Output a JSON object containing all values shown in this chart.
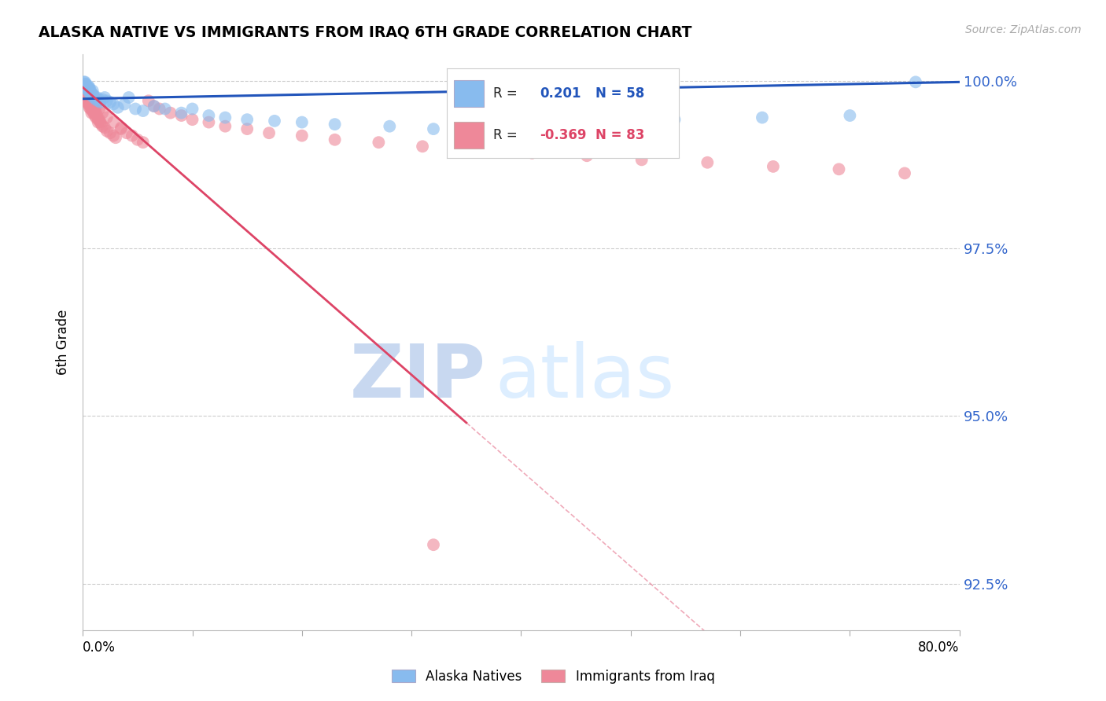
{
  "title": "ALASKA NATIVE VS IMMIGRANTS FROM IRAQ 6TH GRADE CORRELATION CHART",
  "source": "Source: ZipAtlas.com",
  "ylabel": "6th Grade",
  "ytick_values": [
    0.925,
    0.95,
    0.975,
    1.0
  ],
  "ytick_labels": [
    "92.5%",
    "95.0%",
    "97.5%",
    "100.0%"
  ],
  "xmin": 0.0,
  "xmax": 0.8,
  "ymin": 0.918,
  "ymax": 1.004,
  "blue_R": 0.201,
  "blue_N": 58,
  "pink_R": -0.369,
  "pink_N": 83,
  "legend_label_blue": "Alaska Natives",
  "legend_label_pink": "Immigrants from Iraq",
  "watermark_zip": "ZIP",
  "watermark_atlas": "atlas",
  "blue_line_color": "#2255bb",
  "pink_line_color": "#dd4466",
  "blue_scatter_color": "#88bbee",
  "pink_scatter_color": "#ee8899",
  "grid_color": "#cccccc",
  "background_color": "#ffffff",
  "blue_scatter_x": [
    0.001,
    0.002,
    0.002,
    0.003,
    0.003,
    0.003,
    0.004,
    0.004,
    0.005,
    0.005,
    0.005,
    0.006,
    0.006,
    0.006,
    0.006,
    0.007,
    0.007,
    0.008,
    0.008,
    0.009,
    0.009,
    0.01,
    0.01,
    0.011,
    0.012,
    0.013,
    0.014,
    0.015,
    0.016,
    0.018,
    0.02,
    0.022,
    0.025,
    0.028,
    0.032,
    0.038,
    0.042,
    0.048,
    0.055,
    0.065,
    0.075,
    0.09,
    0.1,
    0.115,
    0.13,
    0.15,
    0.175,
    0.2,
    0.23,
    0.28,
    0.32,
    0.37,
    0.42,
    0.48,
    0.54,
    0.62,
    0.7,
    0.76
  ],
  "blue_scatter_y": [
    0.9998,
    0.9998,
    0.9995,
    0.9992,
    0.999,
    0.9995,
    0.9988,
    0.999,
    0.9985,
    0.9992,
    0.9988,
    0.9982,
    0.9985,
    0.9988,
    0.999,
    0.9985,
    0.9982,
    0.998,
    0.9978,
    0.998,
    0.9985,
    0.9978,
    0.9975,
    0.9975,
    0.9972,
    0.9975,
    0.997,
    0.9972,
    0.9968,
    0.9972,
    0.9975,
    0.997,
    0.9968,
    0.9965,
    0.996,
    0.9965,
    0.9975,
    0.9958,
    0.9955,
    0.9962,
    0.9958,
    0.9952,
    0.9958,
    0.9948,
    0.9945,
    0.9942,
    0.994,
    0.9938,
    0.9935,
    0.9932,
    0.9928,
    0.993,
    0.9935,
    0.994,
    0.9942,
    0.9945,
    0.9948,
    0.9998
  ],
  "pink_scatter_x": [
    0.001,
    0.001,
    0.002,
    0.002,
    0.002,
    0.003,
    0.003,
    0.003,
    0.004,
    0.004,
    0.004,
    0.005,
    0.005,
    0.005,
    0.006,
    0.006,
    0.006,
    0.007,
    0.007,
    0.007,
    0.008,
    0.008,
    0.008,
    0.009,
    0.009,
    0.01,
    0.01,
    0.011,
    0.011,
    0.012,
    0.012,
    0.013,
    0.014,
    0.014,
    0.015,
    0.016,
    0.017,
    0.018,
    0.02,
    0.022,
    0.025,
    0.028,
    0.03,
    0.035,
    0.04,
    0.045,
    0.05,
    0.055,
    0.06,
    0.065,
    0.07,
    0.08,
    0.09,
    0.1,
    0.115,
    0.13,
    0.15,
    0.17,
    0.2,
    0.23,
    0.27,
    0.31,
    0.36,
    0.41,
    0.46,
    0.51,
    0.57,
    0.63,
    0.69,
    0.75,
    0.001,
    0.002,
    0.003,
    0.006,
    0.008,
    0.01,
    0.012,
    0.015,
    0.018,
    0.022,
    0.028,
    0.035,
    0.32
  ],
  "pink_scatter_y": [
    0.999,
    0.9985,
    0.9985,
    0.9982,
    0.9978,
    0.998,
    0.9975,
    0.9972,
    0.9978,
    0.9975,
    0.9968,
    0.9975,
    0.997,
    0.9965,
    0.997,
    0.9965,
    0.996,
    0.9968,
    0.9962,
    0.9958,
    0.9965,
    0.9958,
    0.9952,
    0.996,
    0.9955,
    0.996,
    0.9952,
    0.9955,
    0.9948,
    0.9952,
    0.9945,
    0.9948,
    0.9942,
    0.9938,
    0.9942,
    0.9938,
    0.9935,
    0.9932,
    0.993,
    0.9925,
    0.9922,
    0.9918,
    0.9915,
    0.9928,
    0.9922,
    0.9918,
    0.9912,
    0.9908,
    0.997,
    0.9962,
    0.9958,
    0.9952,
    0.9948,
    0.9942,
    0.9938,
    0.9932,
    0.9928,
    0.9922,
    0.9918,
    0.9912,
    0.9908,
    0.9902,
    0.9898,
    0.9892,
    0.9888,
    0.9882,
    0.9878,
    0.9872,
    0.9868,
    0.9862,
    0.9992,
    0.9988,
    0.9982,
    0.9978,
    0.9972,
    0.9968,
    0.9962,
    0.9958,
    0.9952,
    0.9945,
    0.9938,
    0.993,
    0.9308
  ]
}
